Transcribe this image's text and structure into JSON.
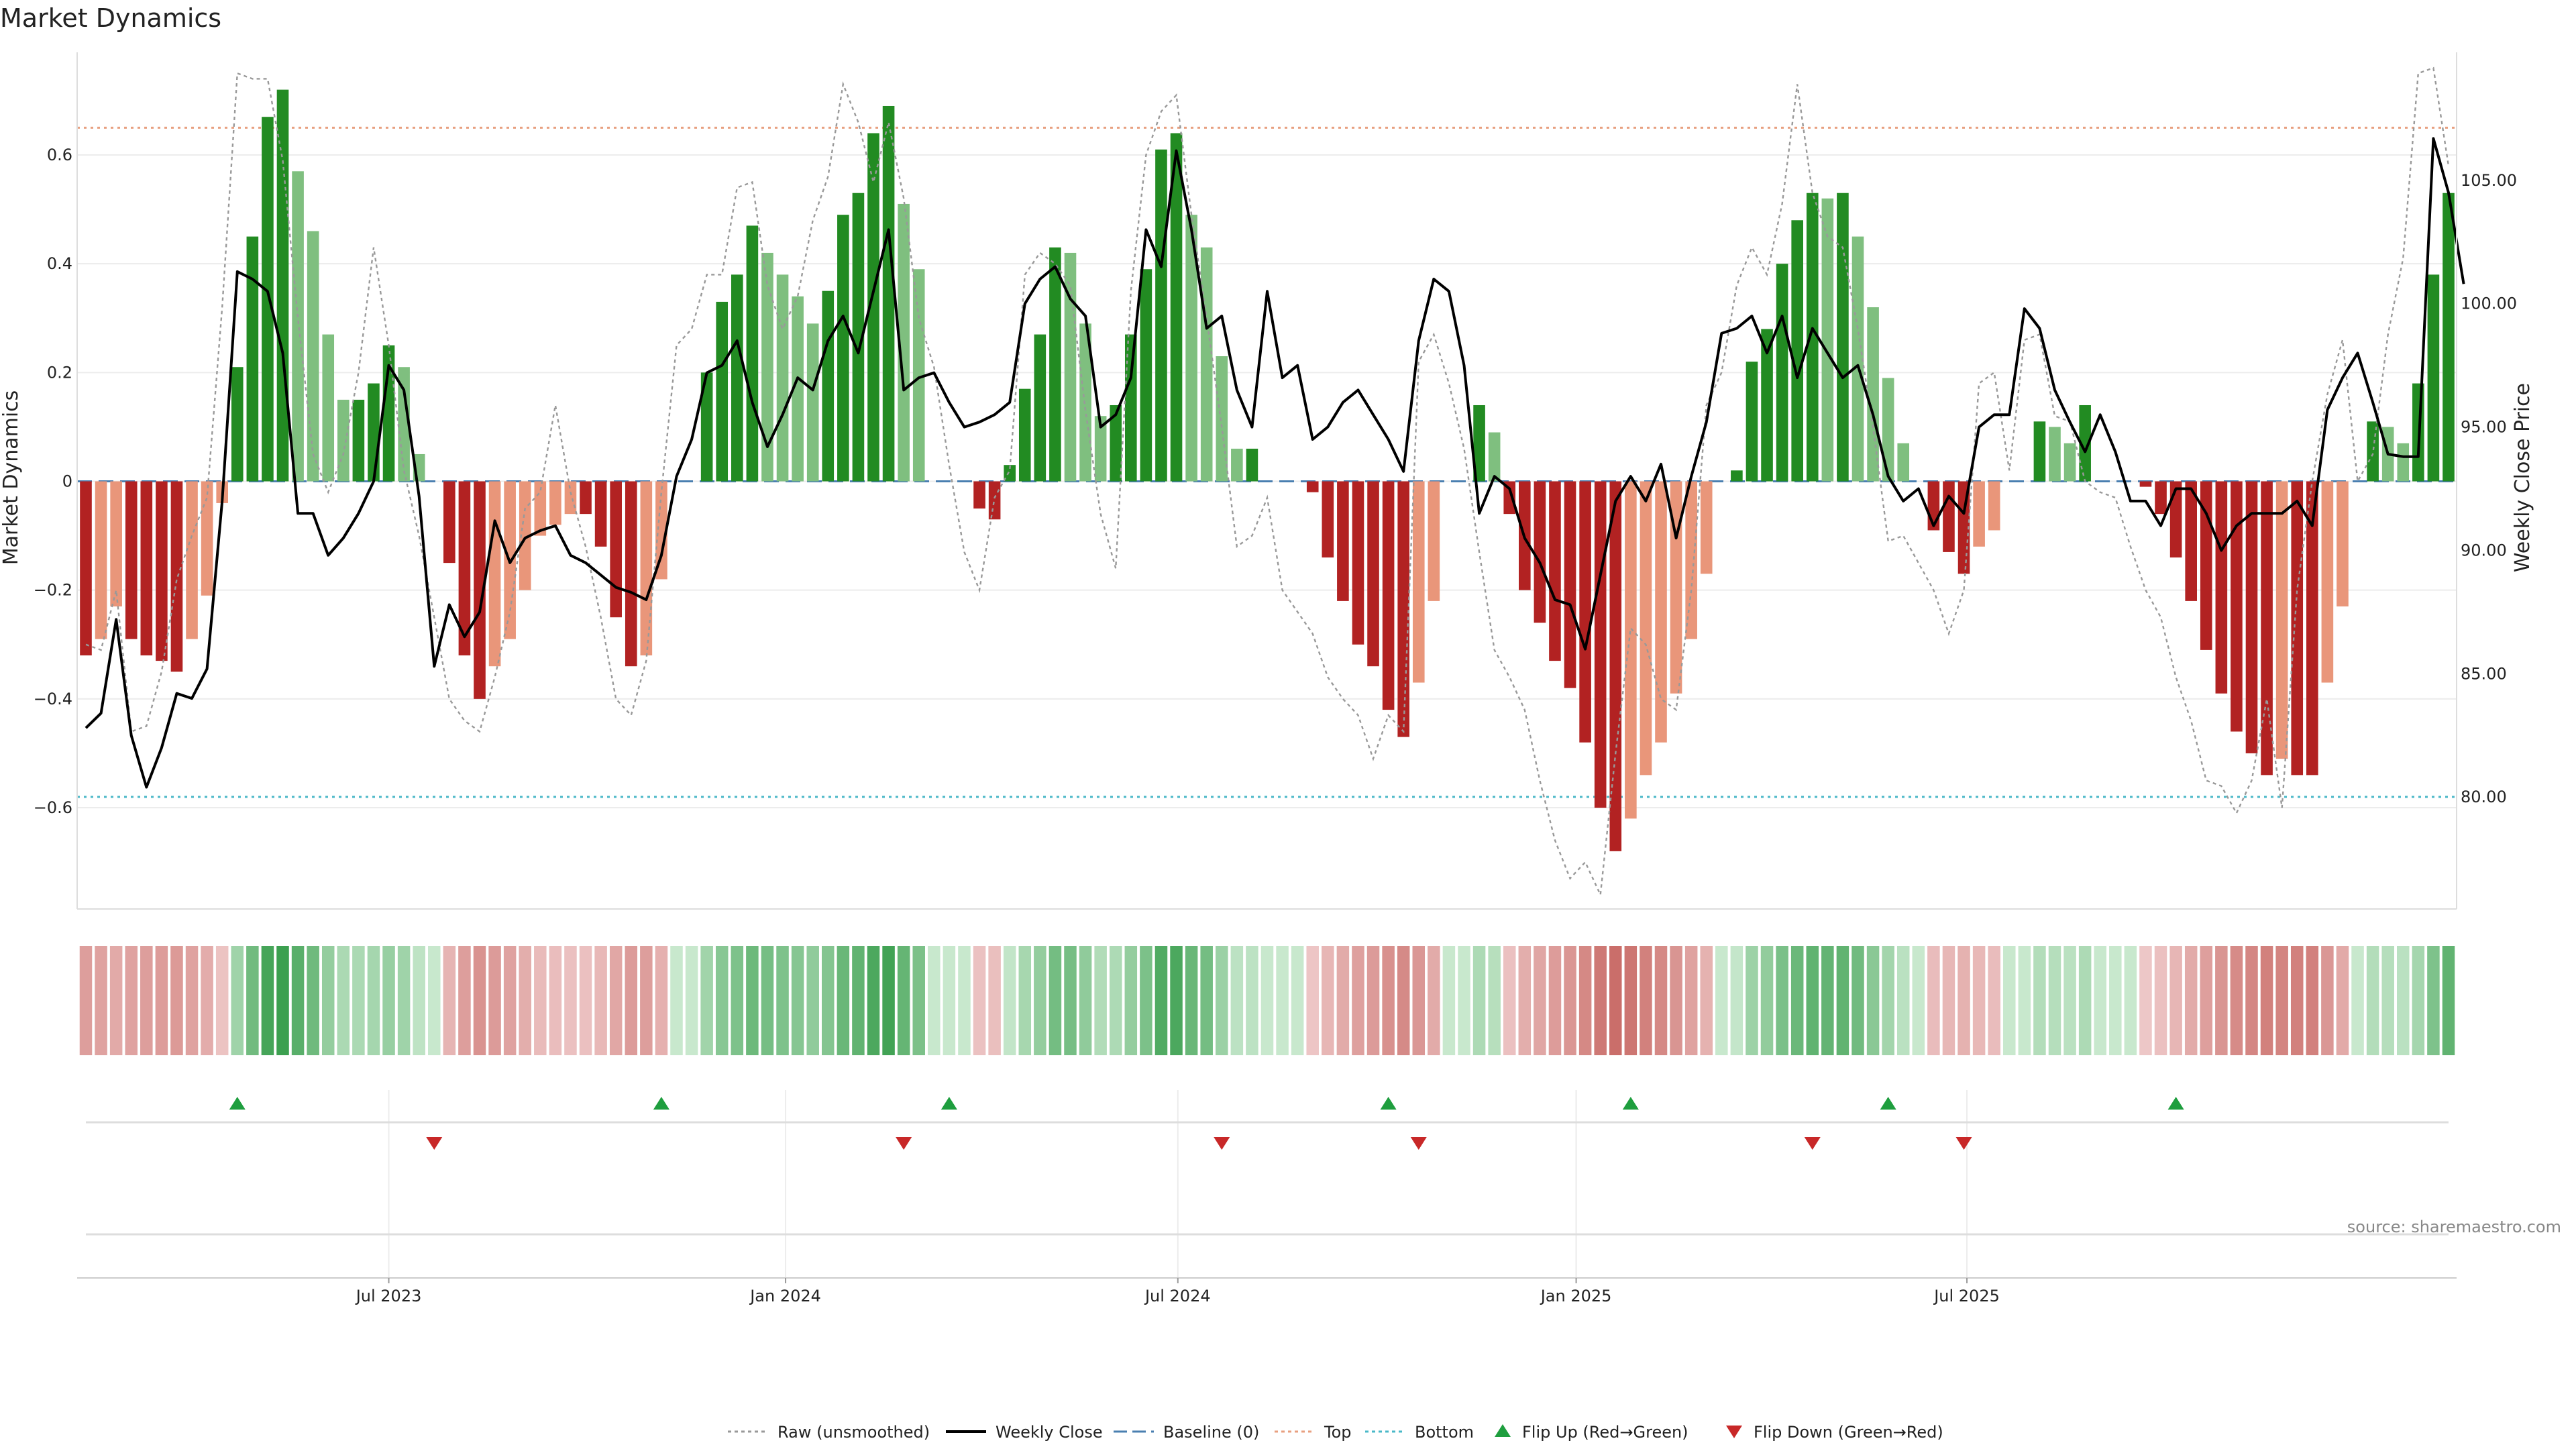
{
  "chart_data": {
    "type": "bar",
    "title": "Market Dynamics",
    "ylabel": "Market Dynamics",
    "y2label": "Weekly Close Price",
    "ylim": [
      -0.78,
      0.78
    ],
    "y2lim": [
      75.6,
      110.0
    ],
    "yticks": [
      -0.6,
      -0.4,
      -0.2,
      0.0,
      0.2,
      0.4,
      0.6
    ],
    "ytick_labels": [
      "−0.6",
      "−0.4",
      "−0.2",
      "0",
      "0.2",
      "0.4",
      "0.6"
    ],
    "y2ticks": [
      80,
      85,
      90,
      95,
      100,
      105
    ],
    "y2tick_labels": [
      "80.00",
      "85.00",
      "90.00",
      "95.00",
      "100.00",
      "105.00"
    ],
    "x_ticks": [
      {
        "label": "Jul 2023",
        "index": 20.0
      },
      {
        "label": "Jan 2024",
        "index": 46.2
      },
      {
        "label": "Jul 2024",
        "index": 72.1
      },
      {
        "label": "Jan 2025",
        "index": 98.4
      },
      {
        "label": "Jul 2025",
        "index": 124.2
      }
    ],
    "grid": true,
    "legend_position": "bottom",
    "source": "source: sharemaestro.com",
    "top_level": 0.65,
    "bottom_level": -0.58,
    "baseline": 0,
    "colors": {
      "strong_up": "#228b22",
      "weak_up": "#7fbf7f",
      "strong_down": "#b22222",
      "weak_down": "#e9967a",
      "raw": "#999999",
      "close": "#000000",
      "baseline": "#4a7fb0",
      "top": "#e8a080",
      "bottom": "#4ab8c8",
      "flip_up": "#1e9e3e",
      "flip_down": "#c82828"
    },
    "series": [
      {
        "name": "Market Dynamics",
        "values": [
          -0.32,
          -0.29,
          -0.23,
          -0.29,
          -0.32,
          -0.33,
          -0.35,
          -0.29,
          -0.21,
          -0.04,
          0.21,
          0.45,
          0.67,
          0.72,
          0.57,
          0.46,
          0.27,
          0.15,
          0.15,
          0.18,
          0.25,
          0.21,
          0.05,
          0.0,
          -0.15,
          -0.32,
          -0.4,
          -0.34,
          -0.29,
          -0.2,
          -0.1,
          -0.08,
          -0.06,
          -0.06,
          -0.12,
          -0.25,
          -0.34,
          -0.32,
          -0.18,
          0.0,
          0.0,
          0.2,
          0.33,
          0.38,
          0.47,
          0.42,
          0.38,
          0.34,
          0.29,
          0.35,
          0.49,
          0.53,
          0.64,
          0.69,
          0.51,
          0.39,
          0.0,
          0.0,
          0.0,
          -0.05,
          -0.07,
          0.03,
          0.17,
          0.27,
          0.43,
          0.42,
          0.29,
          0.12,
          0.14,
          0.27,
          0.39,
          0.61,
          0.64,
          0.49,
          0.43,
          0.23,
          0.06,
          0.06,
          0.0,
          0.0,
          0.0,
          -0.02,
          -0.14,
          -0.22,
          -0.3,
          -0.34,
          -0.42,
          -0.47,
          -0.37,
          -0.22,
          0.0,
          0.0,
          0.14,
          0.09,
          -0.06,
          -0.2,
          -0.26,
          -0.33,
          -0.38,
          -0.48,
          -0.6,
          -0.68,
          -0.62,
          -0.54,
          -0.48,
          -0.39,
          -0.29,
          -0.17,
          0.0,
          0.02,
          0.22,
          0.28,
          0.4,
          0.48,
          0.53,
          0.52,
          0.53,
          0.45,
          0.32,
          0.19,
          0.07,
          0.0,
          -0.09,
          -0.13,
          -0.17,
          -0.12,
          -0.09,
          0.0,
          0.0,
          0.11,
          0.1,
          0.07,
          0.14,
          0.0,
          0.0,
          0.0,
          -0.01,
          -0.06,
          -0.14,
          -0.22,
          -0.31,
          -0.39,
          -0.46,
          -0.5,
          -0.54,
          -0.51,
          -0.54,
          -0.54,
          -0.37,
          -0.23,
          0.0,
          0.11,
          0.1,
          0.07,
          0.18,
          0.38,
          0.53
        ]
      },
      {
        "name": "Raw (unsmoothed)",
        "values": [
          -0.3,
          -0.31,
          -0.2,
          -0.46,
          -0.45,
          -0.35,
          -0.18,
          -0.1,
          -0.03,
          0.32,
          0.75,
          0.74,
          0.74,
          0.59,
          0.3,
          0.05,
          -0.02,
          0.05,
          0.2,
          0.43,
          0.25,
          0.02,
          -0.1,
          -0.25,
          -0.4,
          -0.44,
          -0.46,
          -0.36,
          -0.24,
          -0.05,
          -0.02,
          0.14,
          -0.02,
          -0.12,
          -0.25,
          -0.4,
          -0.43,
          -0.33,
          -0.02,
          0.25,
          0.28,
          0.38,
          0.38,
          0.54,
          0.55,
          0.36,
          0.28,
          0.34,
          0.48,
          0.56,
          0.73,
          0.66,
          0.55,
          0.66,
          0.52,
          0.3,
          0.21,
          0.03,
          -0.13,
          -0.2,
          -0.03,
          0.02,
          0.38,
          0.42,
          0.4,
          0.36,
          0.13,
          -0.06,
          -0.16,
          0.35,
          0.6,
          0.68,
          0.71,
          0.49,
          0.3,
          0.1,
          -0.12,
          -0.1,
          -0.03,
          -0.2,
          -0.24,
          -0.28,
          -0.36,
          -0.4,
          -0.43,
          -0.51,
          -0.43,
          -0.46,
          0.22,
          0.27,
          0.18,
          0.06,
          -0.13,
          -0.31,
          -0.36,
          -0.42,
          -0.55,
          -0.66,
          -0.73,
          -0.7,
          -0.76,
          -0.5,
          -0.27,
          -0.3,
          -0.4,
          -0.42,
          -0.2,
          0.14,
          0.2,
          0.36,
          0.43,
          0.38,
          0.51,
          0.73,
          0.53,
          0.45,
          0.43,
          0.28,
          0.1,
          -0.11,
          -0.1,
          -0.15,
          -0.2,
          -0.28,
          -0.2,
          0.18,
          0.2,
          0.02,
          0.26,
          0.27,
          0.12,
          0.11,
          0.0,
          -0.02,
          -0.03,
          -0.12,
          -0.2,
          -0.25,
          -0.36,
          -0.44,
          -0.55,
          -0.56,
          -0.61,
          -0.55,
          -0.4,
          -0.6,
          -0.2,
          0.0,
          0.16,
          0.26,
          0.0,
          0.05,
          0.27,
          0.41,
          0.75,
          0.76,
          0.58
        ]
      },
      {
        "name": "Weekly Close",
        "axis": "right",
        "values": [
          82.8,
          83.4,
          87.2,
          82.5,
          80.4,
          82.0,
          84.2,
          84.0,
          85.2,
          92.0,
          101.3,
          101.0,
          100.5,
          98.0,
          91.5,
          91.5,
          89.8,
          90.5,
          91.5,
          92.8,
          97.5,
          96.5,
          92.2,
          85.3,
          87.8,
          86.5,
          87.5,
          91.2,
          89.5,
          90.5,
          90.8,
          91.0,
          89.8,
          89.5,
          89.0,
          88.5,
          88.3,
          88.0,
          89.8,
          93.0,
          94.5,
          97.2,
          97.5,
          98.5,
          96.0,
          94.2,
          95.5,
          97.0,
          96.5,
          98.5,
          99.5,
          98.0,
          100.5,
          103.0,
          96.5,
          97.0,
          97.2,
          96.0,
          95.0,
          95.2,
          95.5,
          96.0,
          100.0,
          101.0,
          101.5,
          100.2,
          99.5,
          95.0,
          95.5,
          97.0,
          103.0,
          101.5,
          106.2,
          103.0,
          99.0,
          99.5,
          96.5,
          95.0,
          100.5,
          97.0,
          97.5,
          94.5,
          95.0,
          96.0,
          96.5,
          95.5,
          94.5,
          93.2,
          98.5,
          101.0,
          100.5,
          97.5,
          91.5,
          93.0,
          92.5,
          90.5,
          89.5,
          88.0,
          87.8,
          86.0,
          89.0,
          92.0,
          93.0,
          92.0,
          93.5,
          90.5,
          93.0,
          95.2,
          98.8,
          99.0,
          99.5,
          98.0,
          99.5,
          97.0,
          99.0,
          98.0,
          97.0,
          97.5,
          95.5,
          93.0,
          92.0,
          92.5,
          91.0,
          92.2,
          91.5,
          95.0,
          95.5,
          95.5,
          99.8,
          99.0,
          96.5,
          95.2,
          94.0,
          95.5,
          94.0,
          92.0,
          92.0,
          91.0,
          92.5,
          92.5,
          91.5,
          90.0,
          91.0,
          91.5,
          91.5,
          91.5,
          92.0,
          91.0,
          95.7,
          97.0,
          98.0,
          96.0,
          93.9,
          93.8,
          93.8,
          106.7,
          104.5,
          100.8
        ]
      }
    ],
    "legend": [
      "Raw (unsmoothed)",
      "Weekly Close",
      "Baseline (0)",
      "Top",
      "Bottom",
      "Flip Up (Red→Green)",
      "Flip Down (Green→Red)"
    ],
    "flip_up_indices": [
      10,
      38,
      57,
      86,
      102,
      119,
      138
    ],
    "flip_down_indices": [
      23,
      54,
      75,
      88,
      114,
      124
    ]
  }
}
